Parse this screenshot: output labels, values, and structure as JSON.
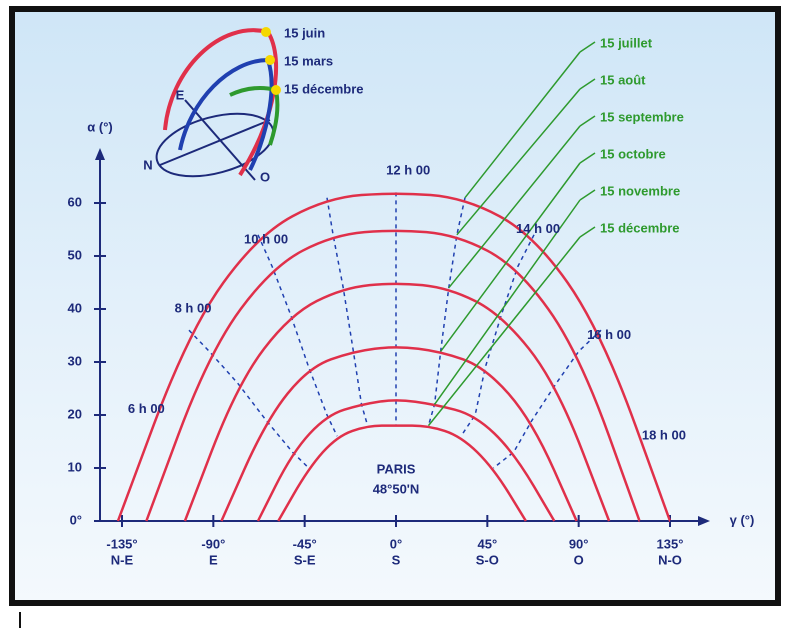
{
  "chart_data": {
    "type": "line",
    "y_label": "α (°)",
    "x_label": "γ (°)",
    "xlim": [
      -135,
      135
    ],
    "ylim": [
      0,
      70
    ],
    "xticks": [
      {
        "value": -135,
        "label": "-135°"
      },
      {
        "value": -90,
        "label": "-90°"
      },
      {
        "value": -45,
        "label": "-45°"
      },
      {
        "value": 0,
        "label": "0°"
      },
      {
        "value": 45,
        "label": "45°"
      },
      {
        "value": 90,
        "label": "90°"
      },
      {
        "value": 135,
        "label": "135°"
      }
    ],
    "xtick_directions": [
      "N-E",
      "E",
      "S-E",
      "S",
      "S-O",
      "O",
      "N-O"
    ],
    "yticks": [
      {
        "value": 0,
        "label": "0°"
      },
      10,
      20,
      30,
      40,
      50,
      60
    ],
    "series": [
      {
        "name": "15 juillet",
        "color": "#e0304a",
        "x": [
          -137,
          -102,
          -68,
          -34,
          0,
          34,
          68,
          101,
          135
        ],
        "values": [
          0,
          36,
          54,
          61,
          62,
          61,
          54,
          36,
          0
        ]
      },
      {
        "name": "15 août",
        "color": "#e0304a",
        "x": [
          -123,
          -92,
          -61,
          -31,
          0,
          30,
          60,
          90,
          120
        ],
        "values": [
          0,
          32,
          48,
          54,
          55,
          54,
          48,
          32,
          0
        ]
      },
      {
        "name": "15 septembre",
        "color": "#e0304a",
        "x": [
          -104,
          -78,
          -52,
          -26,
          0,
          26,
          52,
          79,
          105
        ],
        "values": [
          0,
          26,
          39,
          44,
          45,
          44,
          39,
          26,
          0
        ]
      },
      {
        "name": "15 octobre",
        "color": "#e0304a",
        "x": [
          -86,
          -64,
          -43,
          -21,
          0,
          22,
          44,
          67,
          89
        ],
        "values": [
          0,
          19,
          29,
          32,
          33,
          32,
          29,
          19,
          0
        ]
      },
      {
        "name": "15 novembre",
        "color": "#e0304a",
        "x": [
          -68,
          -51,
          -34,
          -17,
          0,
          19,
          39,
          58,
          78
        ],
        "values": [
          0,
          13,
          20,
          22,
          23,
          22,
          20,
          13,
          0
        ]
      },
      {
        "name": "15 décembre",
        "color": "#e0304a",
        "x": [
          -58,
          -43,
          -29,
          -14,
          0,
          16,
          32,
          48,
          64
        ],
        "values": [
          0,
          10,
          16,
          18,
          18,
          18,
          16,
          10,
          0
        ]
      }
    ],
    "legend_color": "#2e9a2e",
    "hour_labels": [
      {
        "text": "6 h 00",
        "x": -123,
        "y": 21
      },
      {
        "text": "8 h 00",
        "x": -100,
        "y": 40
      },
      {
        "text": "10 h 00",
        "x": -64,
        "y": 53
      },
      {
        "text": "12 h 00",
        "x": 6,
        "y": 66
      },
      {
        "text": "14 h 00",
        "x": 70,
        "y": 55
      },
      {
        "text": "16 h 00",
        "x": 105,
        "y": 35
      },
      {
        "text": "18 h 00",
        "x": 132,
        "y": 16
      }
    ],
    "location": {
      "name": "PARIS",
      "latitude": "48°50'N"
    },
    "inset": {
      "dates": [
        "15 juin",
        "15 mars",
        "15 décembre"
      ],
      "compass": [
        "E",
        "N",
        "O"
      ]
    }
  }
}
